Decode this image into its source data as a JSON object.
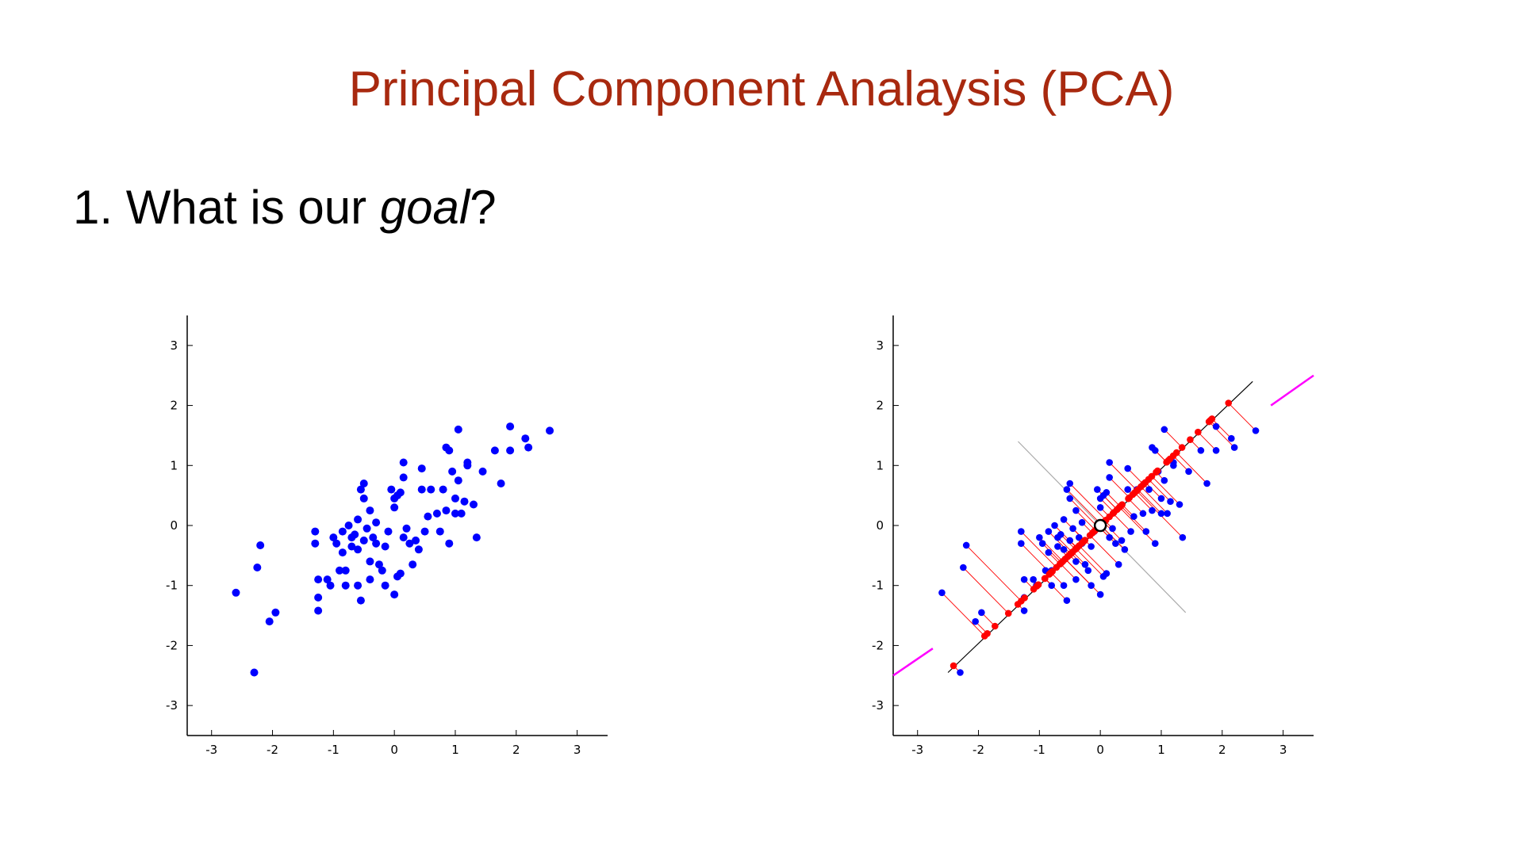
{
  "slide": {
    "title": "Principal Component Analaysis (PCA)",
    "question": {
      "prefix": "1. What is our ",
      "emphasis": "goal",
      "suffix": "?"
    }
  },
  "chart_data": [
    {
      "type": "scatter",
      "title": "",
      "xlabel": "",
      "ylabel": "",
      "xlim": [
        -3.4,
        3.5
      ],
      "ylim": [
        -3.5,
        3.5
      ],
      "xticks": [
        -3,
        -2,
        -1,
        0,
        1,
        2,
        3
      ],
      "yticks": [
        -3,
        -2,
        -1,
        0,
        1,
        2,
        3
      ],
      "tick_labels": {
        "x": [
          "-3",
          "-2",
          "-1",
          "0",
          "1",
          "2",
          "3"
        ],
        "y": [
          "-3",
          "-2",
          "-1",
          "0",
          "1",
          "2",
          "3"
        ]
      },
      "grid": false,
      "legend": "none",
      "colors": {
        "points": "#0000ff",
        "axis": "#000000"
      },
      "series": [
        {
          "values": [
            [
              -2.6,
              -1.12
            ],
            [
              -2.3,
              -2.45
            ],
            [
              -2.25,
              -0.7
            ],
            [
              -2.2,
              -0.33
            ],
            [
              -2.05,
              -1.6
            ],
            [
              -1.95,
              -1.45
            ],
            [
              -1.3,
              -0.1
            ],
            [
              -1.3,
              -0.3
            ],
            [
              -1.25,
              -0.9
            ],
            [
              -1.25,
              -1.2
            ],
            [
              -1.25,
              -1.42
            ],
            [
              -1.1,
              -0.9
            ],
            [
              -1.05,
              -1.0
            ],
            [
              -1.0,
              -0.2
            ],
            [
              -0.95,
              -0.3
            ],
            [
              -0.9,
              -0.75
            ],
            [
              -0.85,
              -0.1
            ],
            [
              -0.85,
              -0.45
            ],
            [
              -0.8,
              -0.75
            ],
            [
              -0.8,
              -1.0
            ],
            [
              -0.75,
              0.0
            ],
            [
              -0.7,
              -0.2
            ],
            [
              -0.7,
              -0.35
            ],
            [
              -0.65,
              -0.15
            ],
            [
              -0.6,
              -0.4
            ],
            [
              -0.6,
              0.1
            ],
            [
              -0.6,
              -1.0
            ],
            [
              -0.55,
              -1.25
            ],
            [
              -0.55,
              0.6
            ],
            [
              -0.5,
              0.45
            ],
            [
              -0.5,
              0.7
            ],
            [
              -0.5,
              -0.25
            ],
            [
              -0.45,
              -0.05
            ],
            [
              -0.4,
              0.25
            ],
            [
              -0.4,
              -0.6
            ],
            [
              -0.4,
              -0.9
            ],
            [
              -0.35,
              -0.2
            ],
            [
              -0.3,
              -0.3
            ],
            [
              -0.3,
              0.05
            ],
            [
              -0.25,
              -0.65
            ],
            [
              -0.2,
              -0.75
            ],
            [
              -0.15,
              -1.0
            ],
            [
              -0.15,
              -0.35
            ],
            [
              -0.1,
              -0.1
            ],
            [
              -0.05,
              0.6
            ],
            [
              0.0,
              0.45
            ],
            [
              0.0,
              0.3
            ],
            [
              0.0,
              -1.15
            ],
            [
              0.05,
              -0.85
            ],
            [
              0.05,
              0.5
            ],
            [
              0.1,
              -0.8
            ],
            [
              0.1,
              0.55
            ],
            [
              0.15,
              0.8
            ],
            [
              0.15,
              -0.2
            ],
            [
              0.15,
              1.05
            ],
            [
              0.2,
              -0.05
            ],
            [
              0.25,
              -0.3
            ],
            [
              0.3,
              -0.65
            ],
            [
              0.35,
              -0.25
            ],
            [
              0.4,
              -0.4
            ],
            [
              0.45,
              0.6
            ],
            [
              0.45,
              0.95
            ],
            [
              0.5,
              -0.1
            ],
            [
              0.55,
              0.15
            ],
            [
              0.6,
              0.6
            ],
            [
              0.7,
              0.2
            ],
            [
              0.75,
              -0.1
            ],
            [
              0.8,
              0.6
            ],
            [
              0.85,
              1.3
            ],
            [
              0.85,
              0.25
            ],
            [
              0.9,
              1.25
            ],
            [
              0.9,
              -0.3
            ],
            [
              0.95,
              0.9
            ],
            [
              1.0,
              0.45
            ],
            [
              1.0,
              0.2
            ],
            [
              1.05,
              1.6
            ],
            [
              1.05,
              0.75
            ],
            [
              1.1,
              0.2
            ],
            [
              1.15,
              0.4
            ],
            [
              1.2,
              1.0
            ],
            [
              1.2,
              1.05
            ],
            [
              1.3,
              0.35
            ],
            [
              1.35,
              -0.2
            ],
            [
              1.45,
              0.9
            ],
            [
              1.65,
              1.25
            ],
            [
              1.75,
              0.7
            ],
            [
              1.9,
              1.65
            ],
            [
              1.9,
              1.25
            ],
            [
              2.15,
              1.45
            ],
            [
              2.2,
              1.3
            ],
            [
              2.55,
              1.58
            ]
          ]
        }
      ]
    },
    {
      "type": "scatter",
      "title": "",
      "xlabel": "",
      "ylabel": "",
      "xlim": [
        -3.4,
        3.5
      ],
      "ylim": [
        -3.5,
        3.5
      ],
      "xticks": [
        -3,
        -2,
        -1,
        0,
        1,
        2,
        3
      ],
      "yticks": [
        -3,
        -2,
        -1,
        0,
        1,
        2,
        3
      ],
      "tick_labels": {
        "x": [
          "-3",
          "-2",
          "-1",
          "0",
          "1",
          "2",
          "3"
        ],
        "y": [
          "-3",
          "-2",
          "-1",
          "0",
          "1",
          "2",
          "3"
        ]
      },
      "grid": false,
      "legend": "none",
      "colors": {
        "points": "#0000ff",
        "projections": "#ff0000",
        "principal_axis": "#000000",
        "secondary_axis": "#aaaaaa",
        "edge_segments": "#ff00ff",
        "center": "#000000"
      },
      "principal_axis": {
        "from": [
          -2.5,
          -2.45
        ],
        "to": [
          2.5,
          2.4
        ]
      },
      "secondary_axis": {
        "from": [
          -1.35,
          1.4
        ],
        "to": [
          1.4,
          -1.45
        ]
      },
      "edge_segments": [
        {
          "from": [
            -3.4,
            -2.5
          ],
          "to": [
            -2.75,
            -2.05
          ]
        },
        {
          "from": [
            2.8,
            2.0
          ],
          "to": [
            3.5,
            2.5
          ]
        }
      ],
      "center": [
        0.0,
        0.0
      ],
      "series": [
        {
          "values": [
            [
              -2.6,
              -1.12
            ],
            [
              -2.3,
              -2.45
            ],
            [
              -2.25,
              -0.7
            ],
            [
              -2.2,
              -0.33
            ],
            [
              -2.05,
              -1.6
            ],
            [
              -1.95,
              -1.45
            ],
            [
              -1.3,
              -0.1
            ],
            [
              -1.3,
              -0.3
            ],
            [
              -1.25,
              -0.9
            ],
            [
              -1.25,
              -1.2
            ],
            [
              -1.25,
              -1.42
            ],
            [
              -1.1,
              -0.9
            ],
            [
              -1.05,
              -1.0
            ],
            [
              -1.0,
              -0.2
            ],
            [
              -0.95,
              -0.3
            ],
            [
              -0.9,
              -0.75
            ],
            [
              -0.85,
              -0.1
            ],
            [
              -0.85,
              -0.45
            ],
            [
              -0.8,
              -0.75
            ],
            [
              -0.8,
              -1.0
            ],
            [
              -0.75,
              0.0
            ],
            [
              -0.7,
              -0.2
            ],
            [
              -0.7,
              -0.35
            ],
            [
              -0.65,
              -0.15
            ],
            [
              -0.6,
              -0.4
            ],
            [
              -0.6,
              0.1
            ],
            [
              -0.6,
              -1.0
            ],
            [
              -0.55,
              -1.25
            ],
            [
              -0.55,
              0.6
            ],
            [
              -0.5,
              0.45
            ],
            [
              -0.5,
              0.7
            ],
            [
              -0.5,
              -0.25
            ],
            [
              -0.45,
              -0.05
            ],
            [
              -0.4,
              0.25
            ],
            [
              -0.4,
              -0.6
            ],
            [
              -0.4,
              -0.9
            ],
            [
              -0.35,
              -0.2
            ],
            [
              -0.3,
              -0.3
            ],
            [
              -0.3,
              0.05
            ],
            [
              -0.25,
              -0.65
            ],
            [
              -0.2,
              -0.75
            ],
            [
              -0.15,
              -1.0
            ],
            [
              -0.15,
              -0.35
            ],
            [
              -0.1,
              -0.1
            ],
            [
              -0.05,
              0.6
            ],
            [
              0.0,
              0.45
            ],
            [
              0.0,
              0.3
            ],
            [
              0.0,
              -1.15
            ],
            [
              0.05,
              -0.85
            ],
            [
              0.05,
              0.5
            ],
            [
              0.1,
              -0.8
            ],
            [
              0.1,
              0.55
            ],
            [
              0.15,
              0.8
            ],
            [
              0.15,
              -0.2
            ],
            [
              0.15,
              1.05
            ],
            [
              0.2,
              -0.05
            ],
            [
              0.25,
              -0.3
            ],
            [
              0.3,
              -0.65
            ],
            [
              0.35,
              -0.25
            ],
            [
              0.4,
              -0.4
            ],
            [
              0.45,
              0.6
            ],
            [
              0.45,
              0.95
            ],
            [
              0.5,
              -0.1
            ],
            [
              0.55,
              0.15
            ],
            [
              0.6,
              0.6
            ],
            [
              0.7,
              0.2
            ],
            [
              0.75,
              -0.1
            ],
            [
              0.8,
              0.6
            ],
            [
              0.85,
              1.3
            ],
            [
              0.85,
              0.25
            ],
            [
              0.9,
              1.25
            ],
            [
              0.9,
              -0.3
            ],
            [
              0.95,
              0.9
            ],
            [
              1.0,
              0.45
            ],
            [
              1.0,
              0.2
            ],
            [
              1.05,
              1.6
            ],
            [
              1.05,
              0.75
            ],
            [
              1.1,
              0.2
            ],
            [
              1.15,
              0.4
            ],
            [
              1.2,
              1.0
            ],
            [
              1.2,
              1.05
            ],
            [
              1.3,
              0.35
            ],
            [
              1.35,
              -0.2
            ],
            [
              1.45,
              0.9
            ],
            [
              1.65,
              1.25
            ],
            [
              1.75,
              0.7
            ],
            [
              1.9,
              1.65
            ],
            [
              1.9,
              1.25
            ],
            [
              2.15,
              1.45
            ],
            [
              2.2,
              1.3
            ],
            [
              2.55,
              1.58
            ]
          ]
        }
      ]
    }
  ]
}
